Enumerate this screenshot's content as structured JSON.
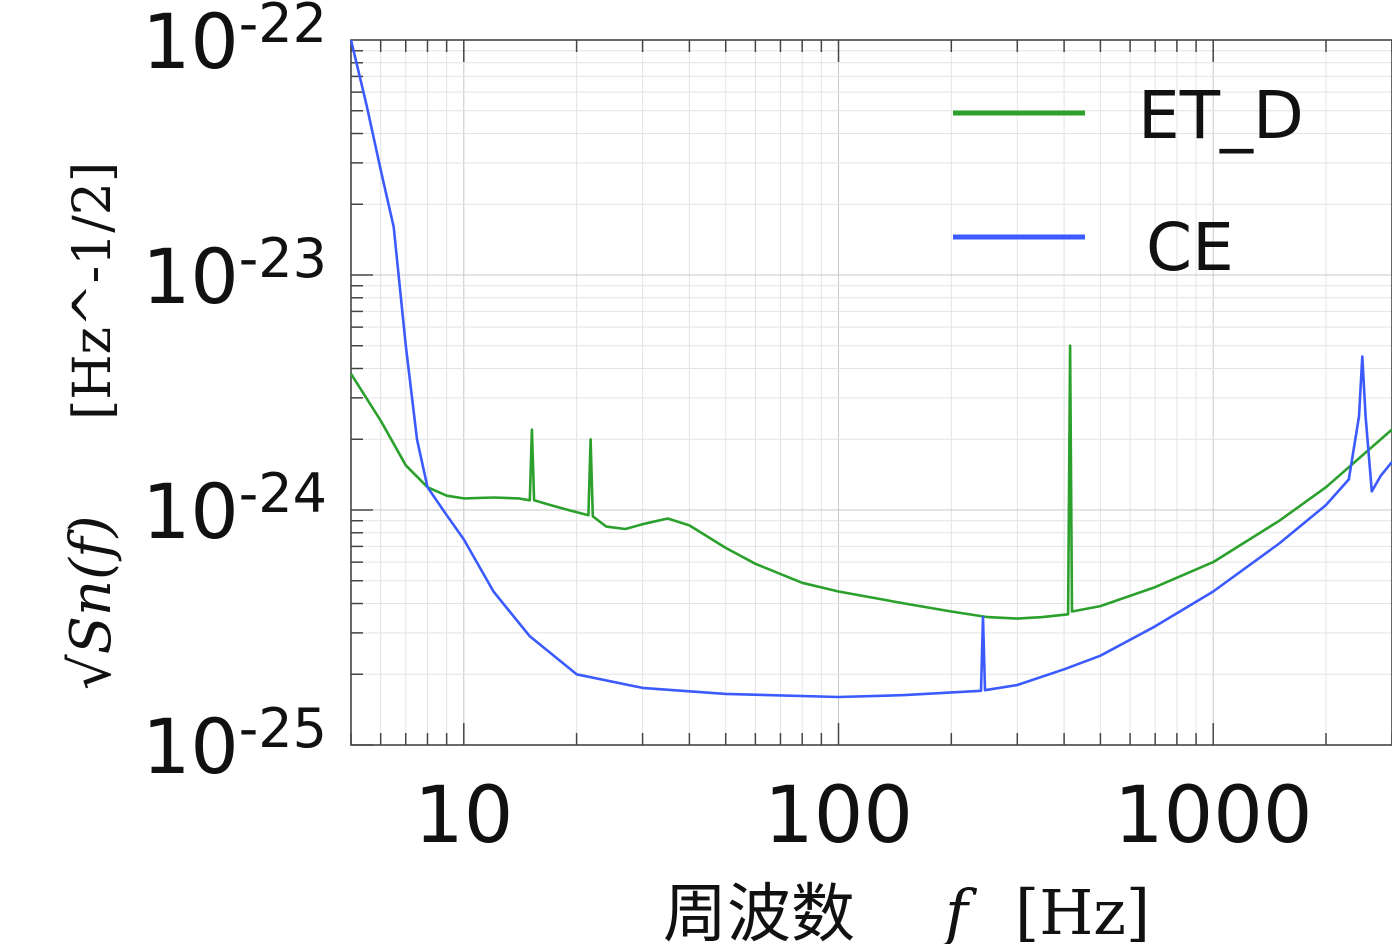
{
  "chart_data": {
    "type": "line",
    "title": "",
    "xlabel": {
      "prefix": "周波数",
      "var": "f",
      "unit": "[Hz]"
    },
    "ylabel": {
      "var": "√Sn(f)",
      "unit": "[Hz^-1/2]"
    },
    "xscale": "log",
    "yscale": "log",
    "xlim": [
      5,
      3000
    ],
    "ylim": [
      1e-25,
      1e-22
    ],
    "grid": true,
    "legend_position": "top-right",
    "x_ticks": [
      {
        "value": 10,
        "label": "10"
      },
      {
        "value": 100,
        "label": "100"
      },
      {
        "value": 1000,
        "label": "1000"
      }
    ],
    "y_ticks": [
      {
        "value": 1e-22,
        "base": "10",
        "exp": "-22"
      },
      {
        "value": 1e-23,
        "base": "10",
        "exp": "-23"
      },
      {
        "value": 1e-24,
        "base": "10",
        "exp": "-24"
      },
      {
        "value": 1e-25,
        "base": "10",
        "exp": "-25"
      }
    ],
    "series": [
      {
        "name": "ET_D",
        "color": "#2ca02c",
        "points": [
          [
            5,
            3.8e-24
          ],
          [
            6,
            2.4e-24
          ],
          [
            7,
            1.55e-24
          ],
          [
            8,
            1.25e-24
          ],
          [
            9,
            1.15e-24
          ],
          [
            10,
            1.12e-24
          ],
          [
            12,
            1.13e-24
          ],
          [
            14,
            1.12e-24
          ],
          [
            15,
            1.1e-24
          ],
          [
            15.2,
            2.2e-24
          ],
          [
            15.4,
            1.1e-24
          ],
          [
            17,
            1.05e-24
          ],
          [
            19,
            1e-24
          ],
          [
            21.5,
            9.5e-25
          ],
          [
            21.8,
            2e-24
          ],
          [
            22.1,
            9.4e-25
          ],
          [
            24,
            8.5e-25
          ],
          [
            27,
            8.3e-25
          ],
          [
            30,
            8.7e-25
          ],
          [
            35,
            9.2e-25
          ],
          [
            40,
            8.6e-25
          ],
          [
            50,
            6.9e-25
          ],
          [
            60,
            5.9e-25
          ],
          [
            80,
            4.9e-25
          ],
          [
            100,
            4.5e-25
          ],
          [
            150,
            4e-25
          ],
          [
            200,
            3.7e-25
          ],
          [
            250,
            3.5e-25
          ],
          [
            300,
            3.45e-25
          ],
          [
            350,
            3.5e-25
          ],
          [
            410,
            3.6e-25
          ],
          [
            415,
            5e-24
          ],
          [
            420,
            3.7e-25
          ],
          [
            500,
            3.9e-25
          ],
          [
            700,
            4.7e-25
          ],
          [
            1000,
            6e-25
          ],
          [
            1500,
            9e-25
          ],
          [
            2000,
            1.25e-24
          ],
          [
            3000,
            2.2e-24
          ]
        ]
      },
      {
        "name": "CE",
        "color": "#3b5bff",
        "points": [
          [
            5,
            1e-22
          ],
          [
            5.5,
            5.3e-23
          ],
          [
            6,
            2.8e-23
          ],
          [
            6.5,
            1.6e-23
          ],
          [
            7,
            5e-24
          ],
          [
            7.5,
            2e-24
          ],
          [
            8,
            1.25e-24
          ],
          [
            9,
            9.5e-25
          ],
          [
            10,
            7.5e-25
          ],
          [
            12,
            4.5e-25
          ],
          [
            15,
            2.9e-25
          ],
          [
            20,
            2e-25
          ],
          [
            30,
            1.75e-25
          ],
          [
            50,
            1.65e-25
          ],
          [
            100,
            1.6e-25
          ],
          [
            150,
            1.63e-25
          ],
          [
            240,
            1.7e-25
          ],
          [
            243,
            3.5e-25
          ],
          [
            246,
            1.71e-25
          ],
          [
            300,
            1.8e-25
          ],
          [
            400,
            2.1e-25
          ],
          [
            500,
            2.4e-25
          ],
          [
            700,
            3.2e-25
          ],
          [
            1000,
            4.5e-25
          ],
          [
            1500,
            7.2e-25
          ],
          [
            2000,
            1.05e-24
          ],
          [
            2300,
            1.35e-24
          ],
          [
            2450,
            2.5e-24
          ],
          [
            2500,
            4.5e-24
          ],
          [
            2550,
            2.5e-24
          ],
          [
            2650,
            1.2e-24
          ],
          [
            2800,
            1.4e-24
          ],
          [
            3000,
            1.6e-24
          ]
        ]
      }
    ]
  }
}
